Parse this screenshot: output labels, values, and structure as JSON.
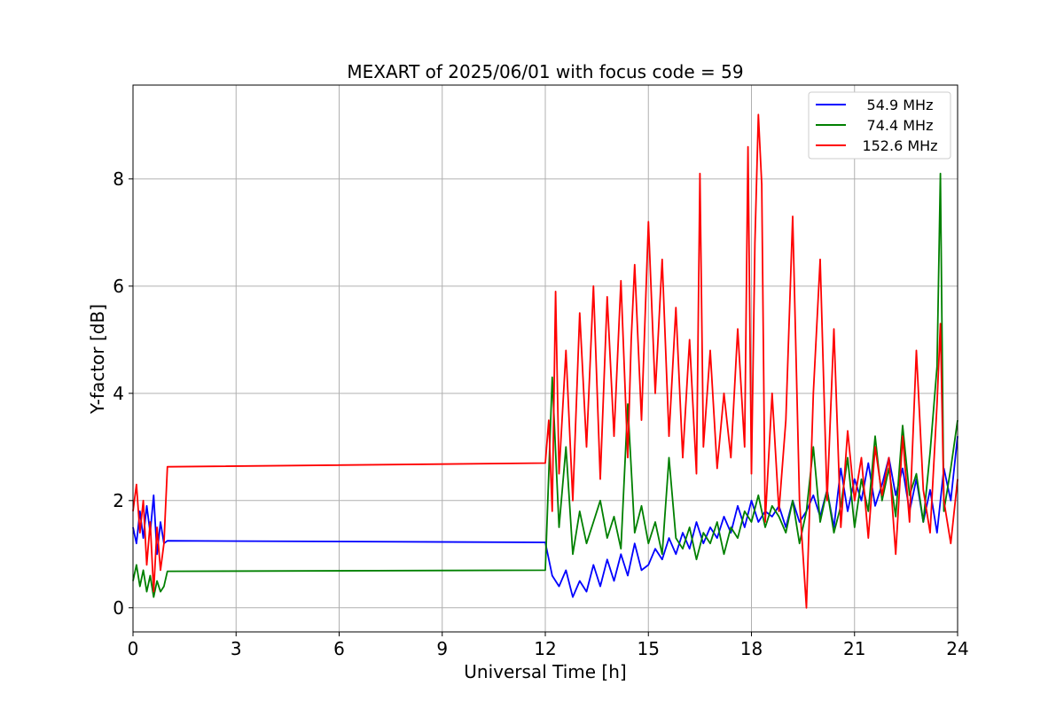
{
  "chart_data": {
    "type": "line",
    "title": "MEXART of 2025/06/01 with focus code = 59",
    "xlabel": "Universal Time [h]",
    "ylabel": "Y-factor [dB]",
    "xlim": [
      0,
      24
    ],
    "ylim": [
      -0.45,
      9.75
    ],
    "xticks": [
      0,
      3,
      6,
      9,
      12,
      15,
      18,
      21,
      24
    ],
    "yticks": [
      0,
      2,
      4,
      6,
      8
    ],
    "grid": true,
    "legend_position": "top-right",
    "series": [
      {
        "name": "54.9 MHz",
        "color": "#0000ff",
        "x": [
          0,
          0.1,
          0.2,
          0.3,
          0.4,
          0.5,
          0.6,
          0.7,
          0.8,
          0.9,
          1.0,
          12.0,
          12.2,
          12.4,
          12.6,
          12.8,
          13.0,
          13.2,
          13.4,
          13.6,
          13.8,
          14.0,
          14.2,
          14.4,
          14.6,
          14.8,
          15.0,
          15.2,
          15.4,
          15.6,
          15.8,
          16.0,
          16.2,
          16.4,
          16.6,
          16.8,
          17.0,
          17.2,
          17.4,
          17.6,
          17.8,
          18.0,
          18.2,
          18.4,
          18.6,
          18.8,
          19.0,
          19.2,
          19.4,
          19.6,
          19.8,
          20.0,
          20.2,
          20.4,
          20.6,
          20.8,
          21.0,
          21.2,
          21.4,
          21.6,
          21.8,
          22.0,
          22.2,
          22.4,
          22.6,
          22.8,
          23.0,
          23.2,
          23.4,
          23.6,
          23.8,
          24.0
        ],
        "y": [
          1.5,
          1.2,
          1.8,
          1.3,
          1.9,
          1.4,
          2.1,
          1.0,
          1.6,
          1.2,
          1.25,
          1.22,
          0.6,
          0.4,
          0.7,
          0.2,
          0.5,
          0.3,
          0.8,
          0.4,
          0.9,
          0.5,
          1.0,
          0.6,
          1.2,
          0.7,
          0.8,
          1.1,
          0.9,
          1.3,
          1.0,
          1.4,
          1.1,
          1.6,
          1.2,
          1.5,
          1.3,
          1.7,
          1.4,
          1.9,
          1.5,
          2.0,
          1.6,
          1.8,
          1.7,
          1.9,
          1.5,
          2.0,
          1.6,
          1.8,
          2.1,
          1.7,
          2.2,
          1.5,
          2.6,
          1.8,
          2.4,
          2.0,
          2.7,
          1.9,
          2.3,
          2.8,
          2.1,
          2.6,
          1.8,
          2.4,
          1.6,
          2.2,
          1.4,
          2.6,
          2.0,
          3.2
        ]
      },
      {
        "name": "74.4 MHz",
        "color": "#008000",
        "x": [
          0,
          0.1,
          0.2,
          0.3,
          0.4,
          0.5,
          0.6,
          0.7,
          0.8,
          0.9,
          1.0,
          12.0,
          12.2,
          12.4,
          12.6,
          12.8,
          13.0,
          13.2,
          13.4,
          13.6,
          13.8,
          14.0,
          14.2,
          14.4,
          14.6,
          14.8,
          15.0,
          15.2,
          15.4,
          15.6,
          15.8,
          16.0,
          16.2,
          16.4,
          16.6,
          16.8,
          17.0,
          17.2,
          17.4,
          17.6,
          17.8,
          18.0,
          18.2,
          18.4,
          18.6,
          18.8,
          19.0,
          19.2,
          19.4,
          19.6,
          19.8,
          20.0,
          20.2,
          20.4,
          20.6,
          20.8,
          21.0,
          21.2,
          21.4,
          21.6,
          21.8,
          22.0,
          22.2,
          22.4,
          22.6,
          22.8,
          23.0,
          23.2,
          23.4,
          23.5,
          23.6,
          23.8,
          24.0
        ],
        "y": [
          0.5,
          0.8,
          0.4,
          0.7,
          0.3,
          0.6,
          0.2,
          0.5,
          0.3,
          0.4,
          0.68,
          0.7,
          4.3,
          1.5,
          3.0,
          1.0,
          1.8,
          1.2,
          1.6,
          2.0,
          1.3,
          1.7,
          1.1,
          3.8,
          1.4,
          1.9,
          1.2,
          1.6,
          1.0,
          2.8,
          1.3,
          1.1,
          1.5,
          0.9,
          1.4,
          1.2,
          1.6,
          1.0,
          1.5,
          1.3,
          1.8,
          1.6,
          2.1,
          1.5,
          1.9,
          1.7,
          1.4,
          2.0,
          1.2,
          1.8,
          3.0,
          1.6,
          2.2,
          1.4,
          1.9,
          2.8,
          1.5,
          2.4,
          1.8,
          3.2,
          2.0,
          2.6,
          1.7,
          3.4,
          2.1,
          2.5,
          1.6,
          2.9,
          4.5,
          8.1,
          1.8,
          2.6,
          3.5
        ]
      },
      {
        "name": "152.6 MHz",
        "color": "#ff0000",
        "x": [
          0,
          0.1,
          0.2,
          0.3,
          0.4,
          0.5,
          0.6,
          0.7,
          0.8,
          0.9,
          1.0,
          12.0,
          12.1,
          12.2,
          12.3,
          12.4,
          12.6,
          12.8,
          13.0,
          13.2,
          13.4,
          13.6,
          13.8,
          14.0,
          14.2,
          14.4,
          14.5,
          14.6,
          14.8,
          15.0,
          15.2,
          15.4,
          15.6,
          15.8,
          16.0,
          16.2,
          16.4,
          16.5,
          16.6,
          16.8,
          17.0,
          17.2,
          17.4,
          17.6,
          17.8,
          17.9,
          18.0,
          18.1,
          18.2,
          18.3,
          18.4,
          18.6,
          18.8,
          19.0,
          19.2,
          19.4,
          19.6,
          19.8,
          20.0,
          20.2,
          20.4,
          20.6,
          20.8,
          21.0,
          21.2,
          21.4,
          21.6,
          21.8,
          22.0,
          22.2,
          22.4,
          22.6,
          22.8,
          23.0,
          23.2,
          23.4,
          23.5,
          23.6,
          23.8,
          24.0
        ],
        "y": [
          1.8,
          2.3,
          1.4,
          2.0,
          0.8,
          1.6,
          0.3,
          1.5,
          0.7,
          1.2,
          2.63,
          2.7,
          3.5,
          1.8,
          5.9,
          2.5,
          4.8,
          2.0,
          5.5,
          3.0,
          6.0,
          2.4,
          5.8,
          3.2,
          6.1,
          2.8,
          5.0,
          6.4,
          3.5,
          7.2,
          4.0,
          6.5,
          3.2,
          5.6,
          2.8,
          5.0,
          2.5,
          8.1,
          3.0,
          4.8,
          2.6,
          4.0,
          2.8,
          5.2,
          3.0,
          8.6,
          2.5,
          6.8,
          9.2,
          7.9,
          1.6,
          4.0,
          1.8,
          3.5,
          7.3,
          2.0,
          0.0,
          4.0,
          6.5,
          2.0,
          5.2,
          1.5,
          3.3,
          2.0,
          2.8,
          1.3,
          3.0,
          2.1,
          2.8,
          1.0,
          3.2,
          1.6,
          4.8,
          2.2,
          1.4,
          3.8,
          5.3,
          2.0,
          1.2,
          2.4
        ]
      }
    ]
  }
}
